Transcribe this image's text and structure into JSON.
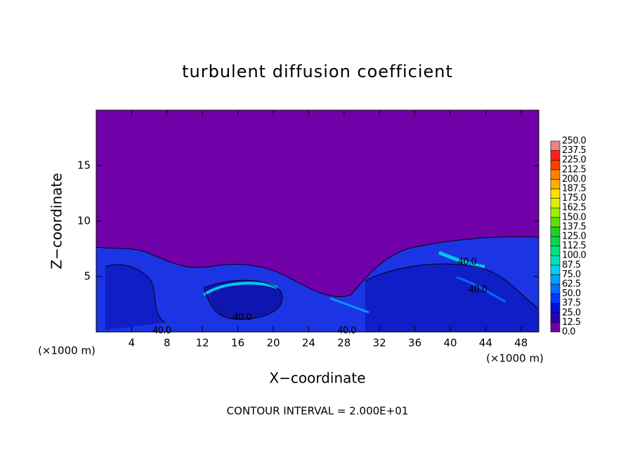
{
  "chart_data": {
    "type": "contour",
    "title": "turbulent diffusion coefficient",
    "x_label": "X−coordinate",
    "y_label": "Z−coordinate",
    "x_unit_left": "(×1000 m)",
    "x_unit_right": "(×1000 m)",
    "footnote": "CONTOUR INTERVAL = 2.000E+01",
    "xlim": [
      0,
      50
    ],
    "ylim": [
      0,
      20
    ],
    "xticks": [
      4,
      8,
      12,
      16,
      20,
      24,
      28,
      32,
      36,
      40,
      44,
      48
    ],
    "yticks": [
      5,
      10,
      15
    ],
    "background_color": "#7000a8",
    "contour_labels": [
      {
        "text": "40.0",
        "x": 41.9,
        "y": 6.3
      },
      {
        "text": "40.0",
        "x": 43.1,
        "y": 3.8
      },
      {
        "text": "40.0",
        "x": 16.5,
        "y": 1.3
      },
      {
        "text": "40.0",
        "x": 7.4,
        "y": 0.1
      },
      {
        "text": "40.0",
        "x": 28.3,
        "y": 0.1
      }
    ],
    "colorbar": {
      "levels": [
        {
          "value": 0,
          "label": "0.0"
        },
        {
          "value": 12.5,
          "label": "12.5"
        },
        {
          "value": 25,
          "label": "25.0"
        },
        {
          "value": 37.5,
          "label": "37.5"
        },
        {
          "value": 50,
          "label": "50.0"
        },
        {
          "value": 62.5,
          "label": "62.5"
        },
        {
          "value": 75,
          "label": "75.0"
        },
        {
          "value": 87.5,
          "label": "87.5"
        },
        {
          "value": 100,
          "label": "100.0"
        },
        {
          "value": 112.5,
          "label": "112.5"
        },
        {
          "value": 125,
          "label": "125.0"
        },
        {
          "value": 137.5,
          "label": "137.5"
        },
        {
          "value": 150,
          "label": "150.0"
        },
        {
          "value": 162.5,
          "label": "162.5"
        },
        {
          "value": 175,
          "label": "175.0"
        },
        {
          "value": 187.5,
          "label": "187.5"
        },
        {
          "value": 200,
          "label": "200.0"
        },
        {
          "value": 212.5,
          "label": "212.5"
        },
        {
          "value": 225,
          "label": "225.0"
        },
        {
          "value": 237.5,
          "label": "237.5"
        },
        {
          "value": 250,
          "label": "250.0"
        }
      ],
      "colors": [
        "#7000a8",
        "#2800b8",
        "#0010d8",
        "#0038ff",
        "#0070ff",
        "#00a0ff",
        "#00d0f0",
        "#00e0b8",
        "#00e080",
        "#00d850",
        "#20d020",
        "#60e000",
        "#a0f000",
        "#e0f000",
        "#ffe000",
        "#ffb000",
        "#ff8000",
        "#ff4000",
        "#ff2020",
        "#f08080"
      ]
    }
  }
}
